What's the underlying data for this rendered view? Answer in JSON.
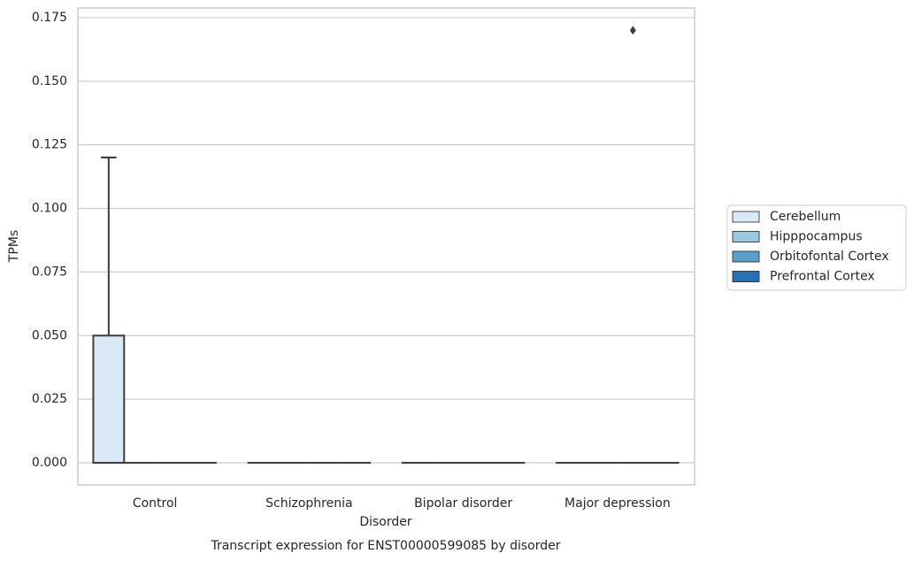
{
  "chart_data": {
    "type": "box",
    "title": "Transcript expression for ENST00000599085 by disorder",
    "x_label": "Disorder",
    "y_label": "TPMs",
    "categories": [
      "Control",
      "Schizophrenia",
      "Bipolar disorder",
      "Major depression"
    ],
    "ylim": [
      -0.0087,
      0.1788
    ],
    "yticks": [
      {
        "value": 0,
        "label": "0.000"
      },
      0.025,
      {
        "value": 0.05,
        "label": "0.050"
      },
      0.075,
      {
        "value": 0.1,
        "label": "0.100"
      },
      0.125,
      {
        "value": 0.15,
        "label": "0.150"
      },
      0.175
    ],
    "grid": true,
    "legend": "right",
    "series": [
      {
        "name": "Cerebellum",
        "color": "#dbe9f6",
        "boxes": [
          {
            "min": 0,
            "q1": 0,
            "median": 0,
            "q3": 0.05,
            "max": 0.12,
            "outliers": []
          },
          {
            "min": 0,
            "q1": 0,
            "median": 0,
            "q3": 0,
            "max": 0,
            "outliers": []
          },
          {
            "min": 0,
            "q1": 0,
            "median": 0,
            "q3": 0,
            "max": 0,
            "outliers": []
          },
          {
            "min": 0,
            "q1": 0,
            "median": 0,
            "q3": 0,
            "max": 0,
            "outliers": []
          }
        ]
      },
      {
        "name": "Hipppocampus",
        "color": "#9ac8e0",
        "boxes": [
          {
            "min": 0,
            "q1": 0,
            "median": 0,
            "q3": 0,
            "max": 0,
            "outliers": []
          },
          {
            "min": 0,
            "q1": 0,
            "median": 0,
            "q3": 0,
            "max": 0,
            "outliers": []
          },
          {
            "min": 0,
            "q1": 0,
            "median": 0,
            "q3": 0,
            "max": 0,
            "outliers": []
          },
          {
            "min": 0,
            "q1": 0,
            "median": 0,
            "q3": 0,
            "max": 0,
            "outliers": []
          }
        ]
      },
      {
        "name": "Orbitofontal Cortex",
        "color": "#5a9fcb",
        "boxes": [
          {
            "min": 0,
            "q1": 0,
            "median": 0,
            "q3": 0,
            "max": 0,
            "outliers": []
          },
          {
            "min": 0,
            "q1": 0,
            "median": 0,
            "q3": 0,
            "max": 0,
            "outliers": []
          },
          {
            "min": 0,
            "q1": 0,
            "median": 0,
            "q3": 0,
            "max": 0,
            "outliers": []
          },
          {
            "min": 0,
            "q1": 0,
            "median": 0,
            "q3": 0,
            "max": 0,
            "outliers": [
              0.17
            ]
          }
        ]
      },
      {
        "name": "Prefrontal Cortex",
        "color": "#2a6fb0",
        "boxes": [
          {
            "min": 0,
            "q1": 0,
            "median": 0,
            "q3": 0,
            "max": 0,
            "outliers": []
          },
          {
            "min": 0,
            "q1": 0,
            "median": 0,
            "q3": 0,
            "max": 0,
            "outliers": []
          },
          {
            "min": 0,
            "q1": 0,
            "median": 0,
            "q3": 0,
            "max": 0,
            "outliers": []
          },
          {
            "min": 0,
            "q1": 0,
            "median": 0,
            "q3": 0,
            "max": 0,
            "outliers": []
          }
        ]
      }
    ]
  }
}
